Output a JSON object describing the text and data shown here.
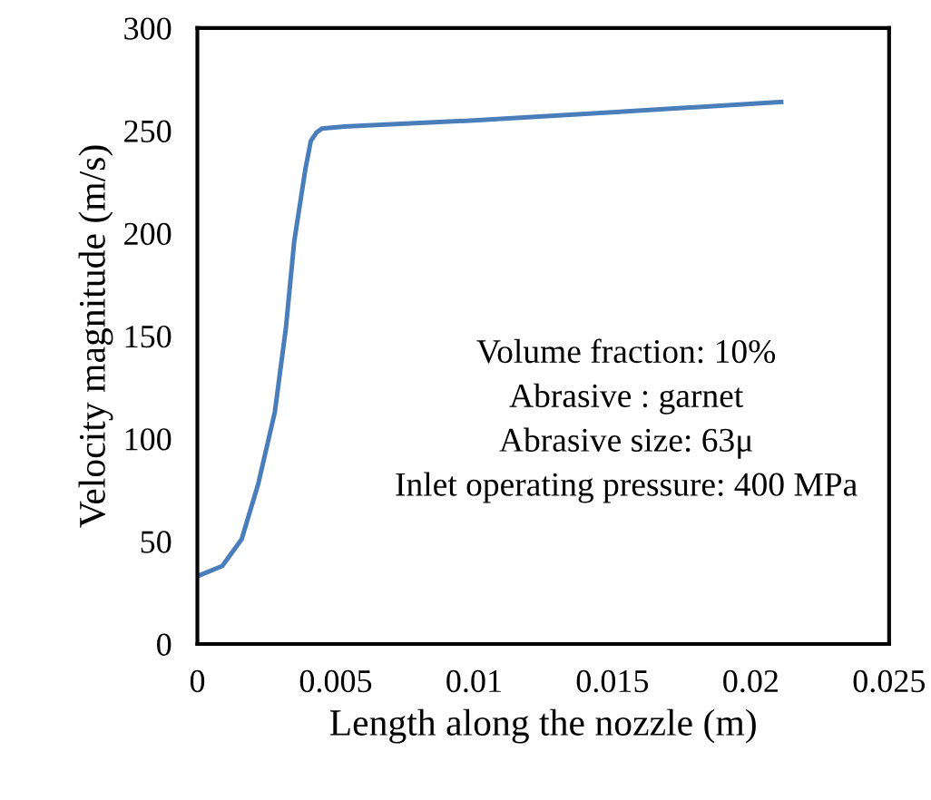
{
  "chart_data": {
    "type": "line",
    "xlabel": "Length along the nozzle (m)",
    "ylabel": "Velocity magnitude (m/s)",
    "x": [
      0,
      0.0009,
      0.0016,
      0.0022,
      0.0028,
      0.0032,
      0.0035,
      0.0039,
      0.0041,
      0.0043,
      0.0045,
      0.0053,
      0.01,
      0.015,
      0.0211
    ],
    "series": [
      {
        "color": "#4a7ebb",
        "values": [
          33,
          38,
          51,
          78,
          113,
          154,
          196,
          231,
          245,
          249,
          251,
          252,
          255,
          259,
          264
        ]
      }
    ],
    "xlim": [
      0,
      0.025
    ],
    "xticks": [
      0,
      0.005,
      0.01,
      0.015,
      0.02,
      0.025
    ],
    "ylim": [
      0,
      300
    ],
    "yticks": [
      0,
      50,
      100,
      150,
      200,
      250,
      300
    ],
    "annotations": [
      "Volume fraction: 10%",
      "Abrasive : garnet",
      "Abrasive size: 63μ",
      "Inlet operating pressure: 400 MPa"
    ]
  }
}
